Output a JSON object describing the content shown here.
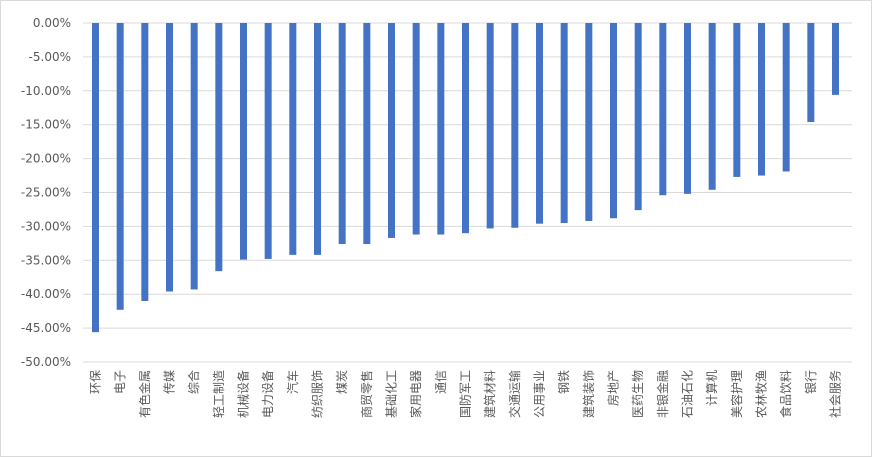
{
  "chart_data": {
    "type": "bar",
    "title": "",
    "xlabel": "",
    "ylabel": "",
    "ylim": [
      -50,
      0
    ],
    "yticks": [
      "0.00%",
      "-5.00%",
      "-10.00%",
      "-15.00%",
      "-20.00%",
      "-25.00%",
      "-30.00%",
      "-35.00%",
      "-40.00%",
      "-45.00%",
      "-50.00%"
    ],
    "grid": true,
    "legend": "none",
    "bar_color": "#4472C4",
    "categories": [
      "环保",
      "电子",
      "有色金属",
      "传媒",
      "综合",
      "轻工制造",
      "机械设备",
      "电力设备",
      "汽车",
      "纺织服饰",
      "煤炭",
      "商贸零售",
      "基础化工",
      "家用电器",
      "通信",
      "国防军工",
      "建筑材料",
      "交通运输",
      "公用事业",
      "钢铁",
      "建筑装饰",
      "房地产",
      "医药生物",
      "非银金融",
      "石油石化",
      "计算机",
      "美容护理",
      "农林牧渔",
      "食品饮料",
      "银行",
      "社会服务"
    ],
    "values": [
      -45.6,
      -42.3,
      -41.0,
      -39.6,
      -39.3,
      -36.6,
      -34.9,
      -34.8,
      -34.2,
      -34.2,
      -32.6,
      -32.6,
      -31.7,
      -31.2,
      -31.2,
      -31.0,
      -30.3,
      -30.2,
      -29.6,
      -29.5,
      -29.2,
      -28.8,
      -27.6,
      -25.4,
      -25.2,
      -24.6,
      -22.7,
      -22.5,
      -21.9,
      -14.6,
      -10.6
    ]
  }
}
